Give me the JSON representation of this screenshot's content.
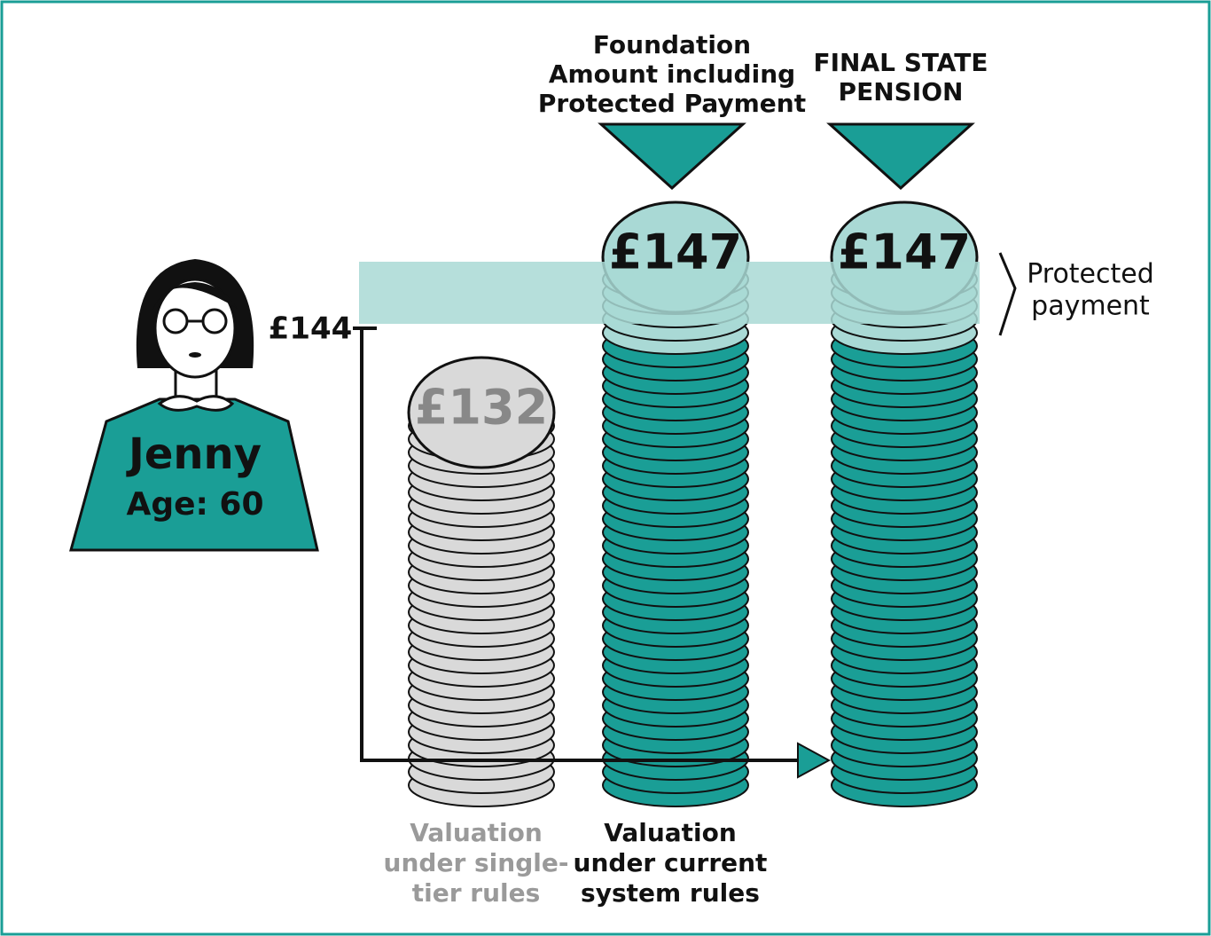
{
  "person": {
    "name": "Jenny",
    "age": "Age: 60"
  },
  "threshold": "£144",
  "stacks": [
    {
      "value": "£132",
      "caption": [
        "Valuation",
        "under single-",
        "tier rules"
      ]
    },
    {
      "value": "£147",
      "header": [
        "Foundation",
        "Amount including",
        "Protected Payment"
      ],
      "caption": [
        "Valuation",
        "under current",
        "system rules"
      ]
    },
    {
      "value": "£147",
      "header": [
        "FINAL STATE",
        "PENSION"
      ]
    }
  ],
  "annotation": [
    "Protected",
    "payment"
  ]
}
